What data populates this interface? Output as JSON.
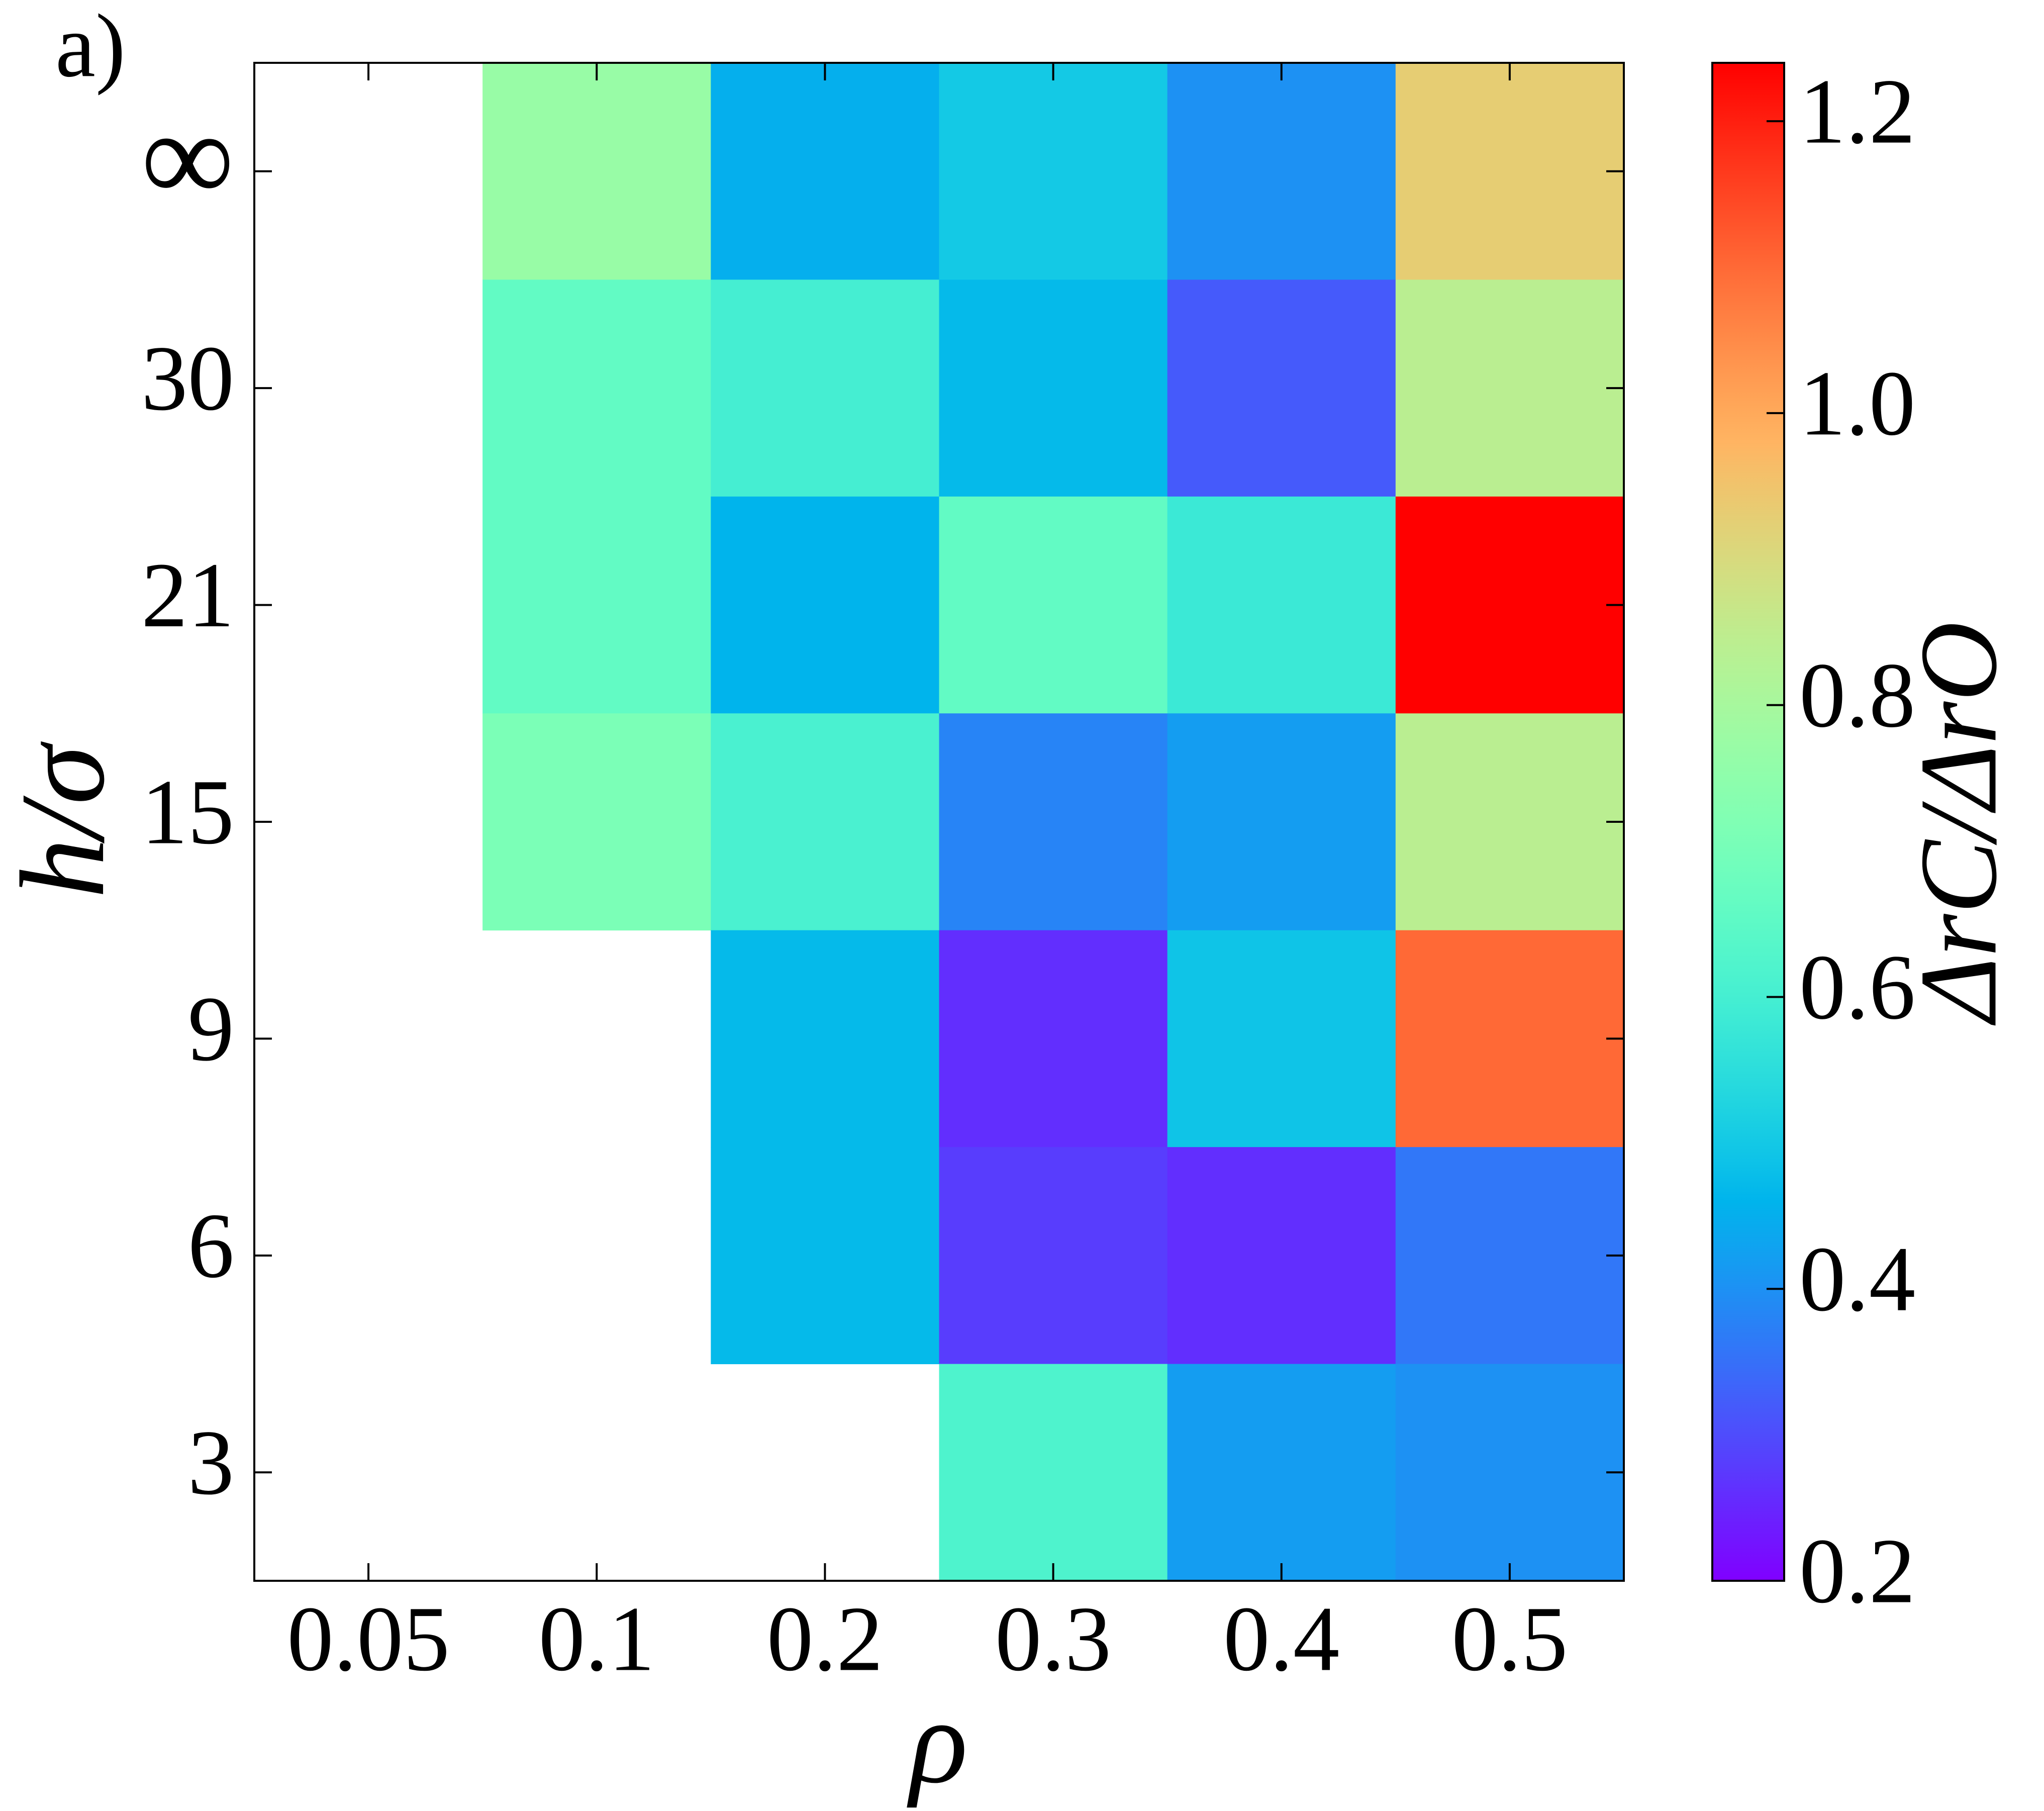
{
  "chart_data": {
    "type": "heatmap",
    "panel_label": "a)",
    "x_label": "ρ",
    "y_label": "h/σ",
    "colorbar_label": "ΔrC/ΔrO",
    "x_categories": [
      "0.05",
      "0.1",
      "0.2",
      "0.3",
      "0.4",
      "0.5"
    ],
    "y_categories": [
      "∞",
      "30",
      "21",
      "15",
      "9",
      "6",
      "3"
    ],
    "values": [
      [
        null,
        0.77,
        0.45,
        0.5,
        0.4,
        0.93
      ],
      [
        null,
        0.66,
        0.6,
        0.47,
        0.32,
        0.84
      ],
      [
        null,
        0.66,
        0.46,
        0.66,
        0.58,
        1.24
      ],
      [
        null,
        0.71,
        0.61,
        0.38,
        0.42,
        0.84
      ],
      [
        null,
        null,
        0.47,
        0.26,
        0.49,
        1.1
      ],
      [
        null,
        null,
        0.47,
        0.28,
        0.26,
        0.36
      ],
      [
        null,
        null,
        null,
        0.62,
        0.42,
        0.4
      ]
    ],
    "colormap": "rainbow",
    "clim": [
      0.2,
      1.24
    ],
    "cticks": [
      0.2,
      0.4,
      0.6,
      0.8,
      {
        "value": 1,
        "label": "1.0"
      },
      1.2
    ]
  }
}
